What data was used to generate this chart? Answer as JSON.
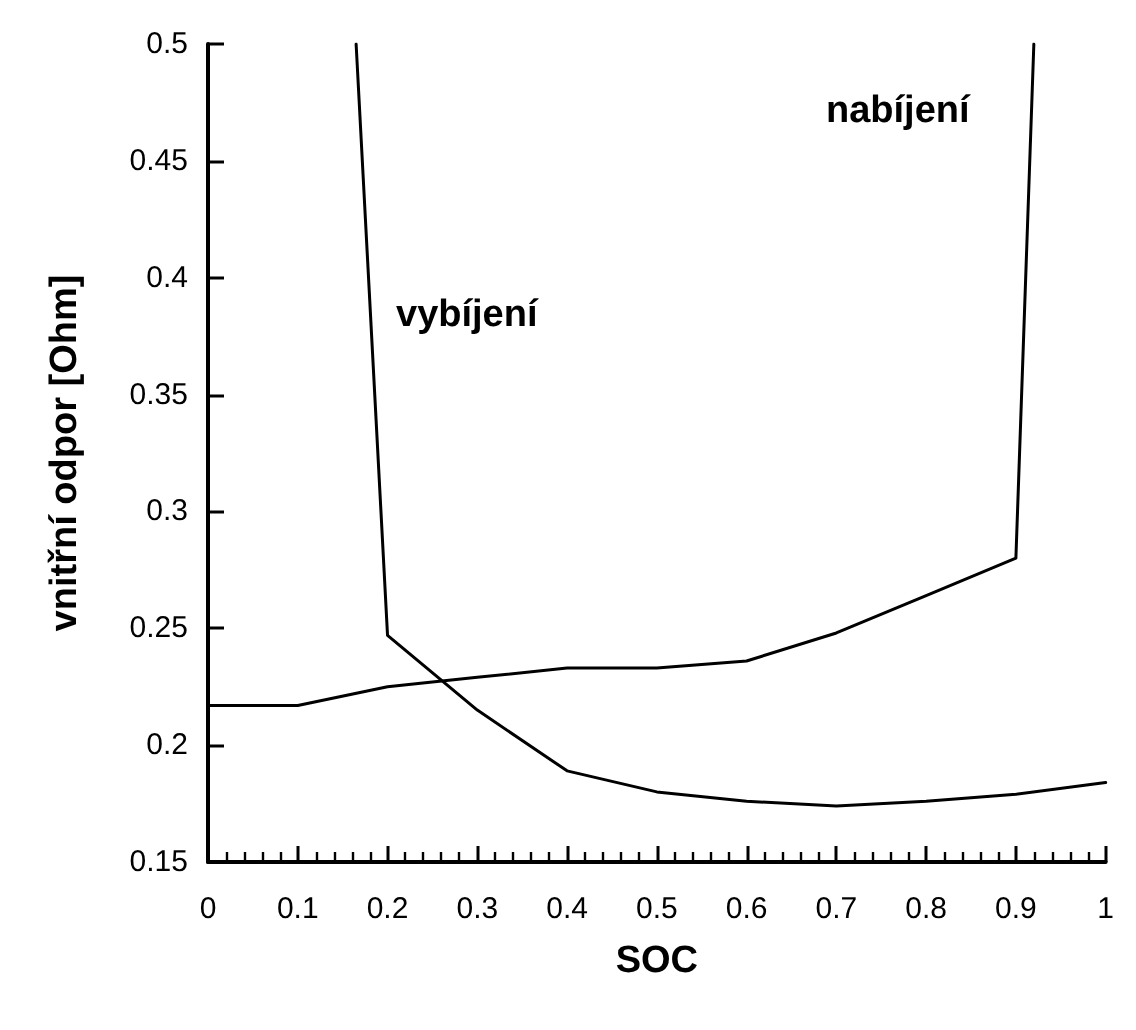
{
  "chart_data": {
    "type": "line",
    "xlabel": "SOC",
    "ylabel": "vnitřní odpor [Ohm]",
    "xlim": [
      0,
      1
    ],
    "xticks": [
      0,
      0.1,
      0.2,
      0.3,
      0.4,
      0.5,
      0.6,
      0.7,
      0.8,
      0.9,
      1
    ],
    "ylim": [
      0.15,
      0.5
    ],
    "yticks": [
      0.15,
      0.2,
      0.25,
      0.3,
      0.35,
      0.4,
      0.45,
      0.5
    ],
    "grid": false,
    "marker": "none",
    "line_style": "solid",
    "series": [
      {
        "color": "#000000",
        "x": [
          0,
          0.1,
          0.2,
          0.3,
          0.4,
          0.5,
          0.6,
          0.7,
          0.8,
          0.9,
          0.92
        ],
        "values": [
          0.217,
          0.217,
          0.225,
          0.229,
          0.233,
          0.233,
          0.236,
          0.248,
          0.264,
          0.28,
          0.5
        ]
      },
      {
        "color": "#000000",
        "x": [
          0.165,
          0.2,
          0.3,
          0.4,
          0.5,
          0.6,
          0.7,
          0.8,
          0.9,
          1
        ],
        "values": [
          0.5,
          0.247,
          0.215,
          0.189,
          0.18,
          0.176,
          0.174,
          0.176,
          0.179,
          0.184
        ]
      }
    ],
    "annotations": [
      "vybíjení",
      "nabíjení"
    ]
  }
}
